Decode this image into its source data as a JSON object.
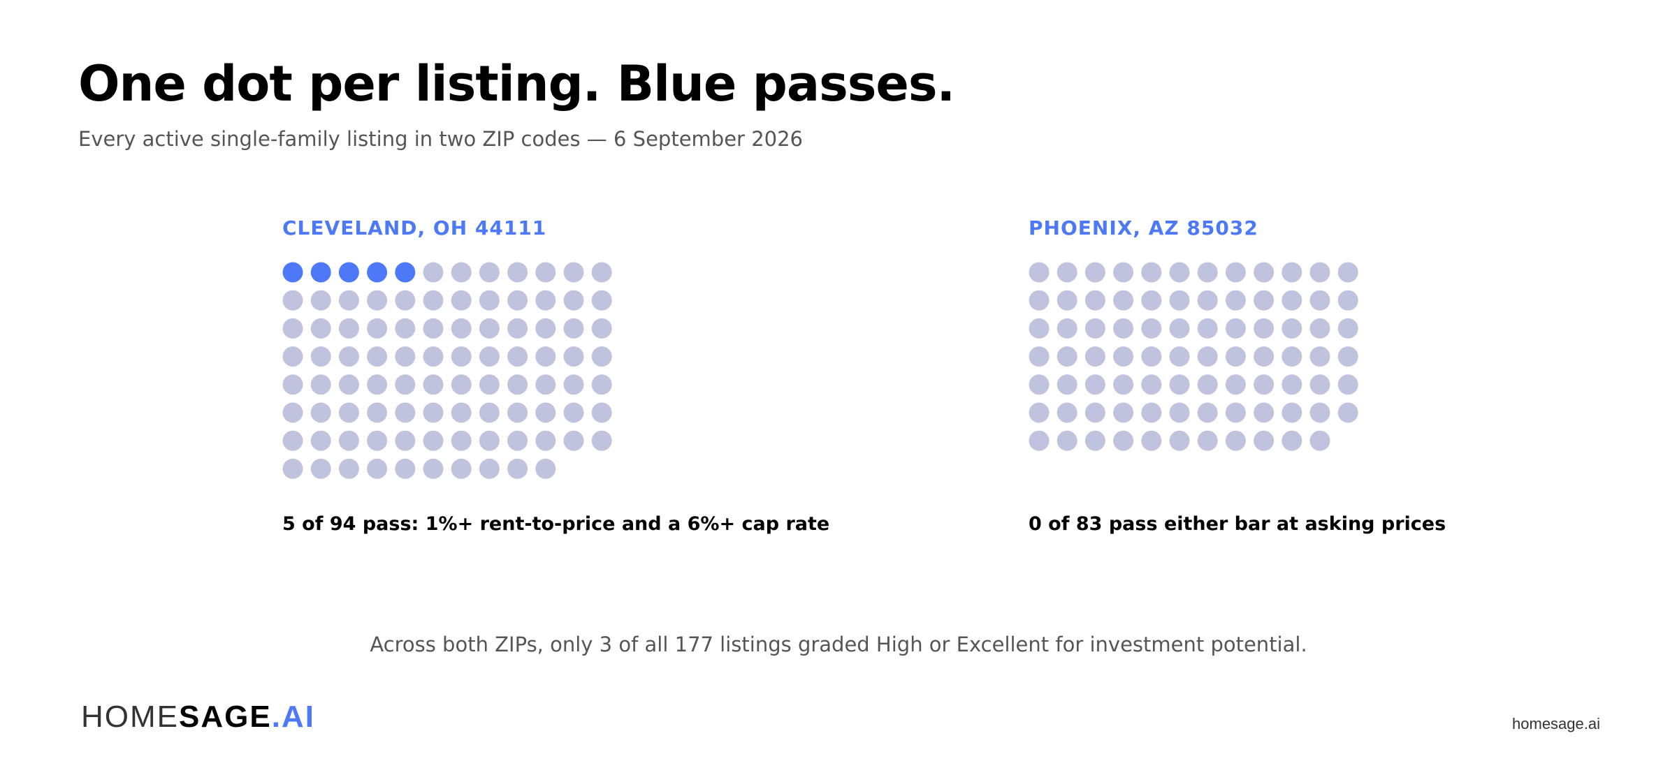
{
  "header": {
    "title": "One dot per listing. Blue passes.",
    "subtitle": "Every active single-family listing in two ZIP codes — 6 September 2026"
  },
  "colors": {
    "pass": "#4D78F7",
    "fail": "#BFC3DD",
    "accent": "#4D78F7",
    "text": "#000000",
    "muted": "#555555"
  },
  "chart_data": [
    {
      "type": "dot_grid",
      "title": "CLEVELAND, OH 44111",
      "columns": 12,
      "total": 94,
      "pass": 5,
      "caption": "5 of 94 pass: 1%+ rent-to-price and a 6%+ cap rate"
    },
    {
      "type": "dot_grid",
      "title": "PHOENIX, AZ 85032",
      "columns": 12,
      "total": 83,
      "pass": 0,
      "caption": "0 of 83 pass either bar at asking prices"
    }
  ],
  "footnote": "Across both ZIPs, only 3 of all 177 listings graded High or Excellent for investment potential.",
  "footer": {
    "logo": {
      "part1": "HOME",
      "part2": "SAGE",
      "part3": ".AI"
    },
    "site": "homesage.ai"
  }
}
